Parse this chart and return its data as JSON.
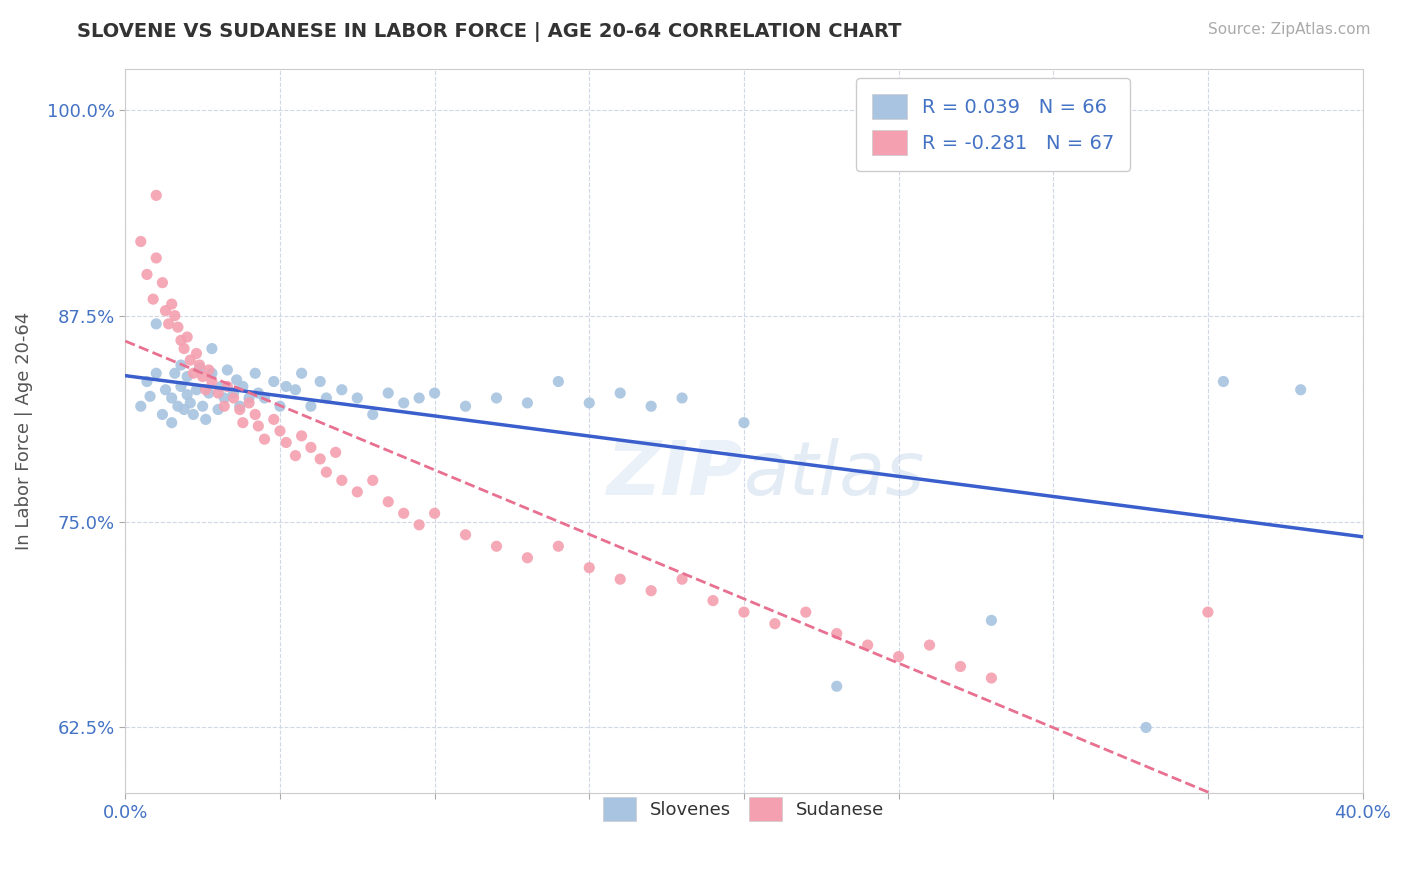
{
  "title": "SLOVENE VS SUDANESE IN LABOR FORCE | AGE 20-64 CORRELATION CHART",
  "source_text": "Source: ZipAtlas.com",
  "ylabel": "In Labor Force | Age 20-64",
  "xlim": [
    0.0,
    0.4
  ],
  "ylim": [
    0.585,
    1.025
  ],
  "xticks": [
    0.0,
    0.05,
    0.1,
    0.15,
    0.2,
    0.25,
    0.3,
    0.35,
    0.4
  ],
  "yticks": [
    0.625,
    0.75,
    0.875,
    1.0
  ],
  "xticklabels": [
    "0.0%",
    "",
    "",
    "",
    "",
    "",
    "",
    "",
    "40.0%"
  ],
  "yticklabels": [
    "62.5%",
    "75.0%",
    "87.5%",
    "100.0%"
  ],
  "slovene_color": "#a8c4e0",
  "sudanese_color": "#f4a0b0",
  "slovene_line_color": "#3a5fcd",
  "sudanese_line_color": "#e87090",
  "R_slovene": 0.039,
  "N_slovene": 66,
  "R_sudanese": -0.281,
  "N_sudanese": 67,
  "watermark": "ZIPatlas",
  "background_color": "#ffffff",
  "slovene_scatter_x": [
    0.005,
    0.007,
    0.008,
    0.01,
    0.01,
    0.012,
    0.013,
    0.015,
    0.015,
    0.016,
    0.017,
    0.018,
    0.018,
    0.019,
    0.02,
    0.02,
    0.021,
    0.022,
    0.023,
    0.024,
    0.025,
    0.026,
    0.027,
    0.028,
    0.028,
    0.03,
    0.031,
    0.032,
    0.033,
    0.035,
    0.036,
    0.037,
    0.038,
    0.04,
    0.042,
    0.043,
    0.045,
    0.048,
    0.05,
    0.052,
    0.055,
    0.057,
    0.06,
    0.063,
    0.065,
    0.07,
    0.075,
    0.08,
    0.085,
    0.09,
    0.095,
    0.1,
    0.11,
    0.12,
    0.13,
    0.14,
    0.15,
    0.16,
    0.17,
    0.18,
    0.2,
    0.23,
    0.28,
    0.33,
    0.355,
    0.38
  ],
  "slovene_scatter_y": [
    0.82,
    0.835,
    0.826,
    0.84,
    0.87,
    0.815,
    0.83,
    0.81,
    0.825,
    0.84,
    0.82,
    0.832,
    0.845,
    0.818,
    0.827,
    0.838,
    0.822,
    0.815,
    0.83,
    0.843,
    0.82,
    0.812,
    0.828,
    0.84,
    0.855,
    0.818,
    0.832,
    0.825,
    0.842,
    0.828,
    0.836,
    0.82,
    0.832,
    0.825,
    0.84,
    0.828,
    0.825,
    0.835,
    0.82,
    0.832,
    0.83,
    0.84,
    0.82,
    0.835,
    0.825,
    0.83,
    0.825,
    0.815,
    0.828,
    0.822,
    0.825,
    0.828,
    0.82,
    0.825,
    0.822,
    0.835,
    0.822,
    0.828,
    0.82,
    0.825,
    0.81,
    0.65,
    0.69,
    0.625,
    0.835,
    0.83
  ],
  "sudanese_scatter_x": [
    0.005,
    0.007,
    0.009,
    0.01,
    0.012,
    0.013,
    0.014,
    0.015,
    0.016,
    0.017,
    0.018,
    0.019,
    0.02,
    0.021,
    0.022,
    0.023,
    0.024,
    0.025,
    0.026,
    0.027,
    0.028,
    0.03,
    0.032,
    0.033,
    0.035,
    0.037,
    0.038,
    0.04,
    0.042,
    0.043,
    0.045,
    0.048,
    0.05,
    0.052,
    0.055,
    0.057,
    0.06,
    0.063,
    0.065,
    0.068,
    0.07,
    0.075,
    0.08,
    0.085,
    0.09,
    0.095,
    0.1,
    0.11,
    0.12,
    0.13,
    0.14,
    0.15,
    0.16,
    0.17,
    0.18,
    0.19,
    0.2,
    0.21,
    0.22,
    0.23,
    0.24,
    0.25,
    0.26,
    0.27,
    0.28,
    0.35,
    0.01
  ],
  "sudanese_scatter_y": [
    0.92,
    0.9,
    0.885,
    0.91,
    0.895,
    0.878,
    0.87,
    0.882,
    0.875,
    0.868,
    0.86,
    0.855,
    0.862,
    0.848,
    0.84,
    0.852,
    0.845,
    0.838,
    0.83,
    0.842,
    0.835,
    0.828,
    0.82,
    0.832,
    0.825,
    0.818,
    0.81,
    0.822,
    0.815,
    0.808,
    0.8,
    0.812,
    0.805,
    0.798,
    0.79,
    0.802,
    0.795,
    0.788,
    0.78,
    0.792,
    0.775,
    0.768,
    0.775,
    0.762,
    0.755,
    0.748,
    0.755,
    0.742,
    0.735,
    0.728,
    0.735,
    0.722,
    0.715,
    0.708,
    0.715,
    0.702,
    0.695,
    0.688,
    0.695,
    0.682,
    0.675,
    0.668,
    0.675,
    0.662,
    0.655,
    0.695,
    0.948
  ]
}
